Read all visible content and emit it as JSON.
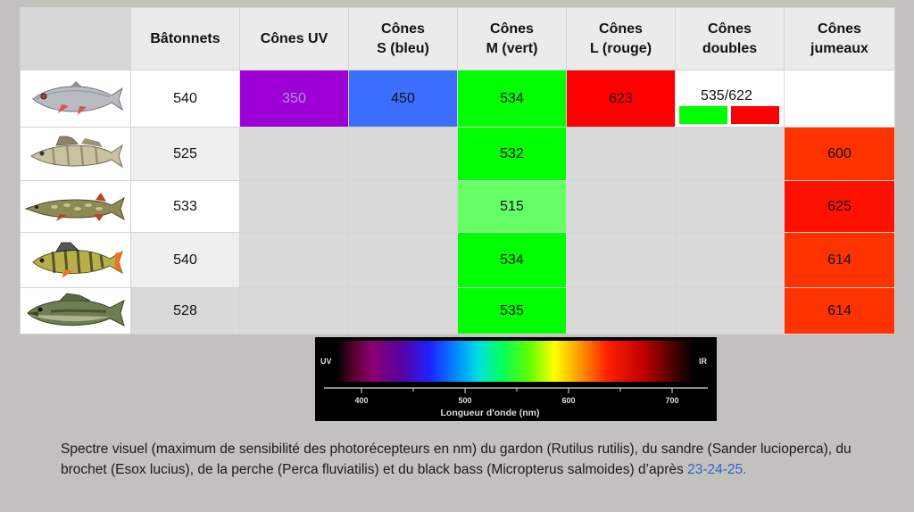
{
  "headers": [
    "",
    "Bâtonnets",
    "Cônes UV",
    "Cônes S (bleu)",
    "Cônes M (vert)",
    "Cônes L (rouge)",
    "Cônes doubles",
    "Cônes jumeaux"
  ],
  "rows": [
    {
      "fish_icon": "roach-fish-icon",
      "rod": "540",
      "uv": "350",
      "s": "450",
      "m": "534",
      "l": "623",
      "double": "535/622",
      "twin": ""
    },
    {
      "fish_icon": "zander-fish-icon",
      "rod": "525",
      "uv": "",
      "s": "",
      "m": "532",
      "l": "",
      "double": "",
      "twin": "600"
    },
    {
      "fish_icon": "pike-fish-icon",
      "rod": "533",
      "uv": "",
      "s": "",
      "m": "515",
      "l": "",
      "double": "",
      "twin": "625"
    },
    {
      "fish_icon": "perch-fish-icon",
      "rod": "540",
      "uv": "",
      "s": "",
      "m": "534",
      "l": "",
      "double": "",
      "twin": "614"
    },
    {
      "fish_icon": "bass-fish-icon",
      "rod": "528",
      "uv": "",
      "s": "",
      "m": "535",
      "l": "",
      "double": "",
      "twin": "614"
    }
  ],
  "colors": {
    "uv": "#9d00d4",
    "uv_text": "#b98ce8",
    "s": "#3c6fff",
    "m": "#00ff00",
    "m_pike": "#66ff66",
    "l": "#ff0000",
    "twin_zander": "#ff3300",
    "twin_pike": "#ff1100",
    "twin_perch": "#ff3300",
    "twin_bass": "#ff3300",
    "double_green": "#00ff00",
    "double_red": "#ff0000"
  },
  "spectrum": {
    "left_label": "UV",
    "right_label": "IR",
    "ticks": [
      "400",
      "500",
      "600",
      "700"
    ],
    "axis_label": "Longueur d'onde (nm)"
  },
  "caption": {
    "text": "Spectre visuel (maximum de sensibilité des photorécepteurs en nm) du gardon (Rutilus rutilis), du sandre (Sander lucioperca), du brochet (Esox lucius), de la perche (Perca fluviatilis) et du black bass (Micropterus salmoides) d’après ",
    "refs": "23-24-25."
  }
}
